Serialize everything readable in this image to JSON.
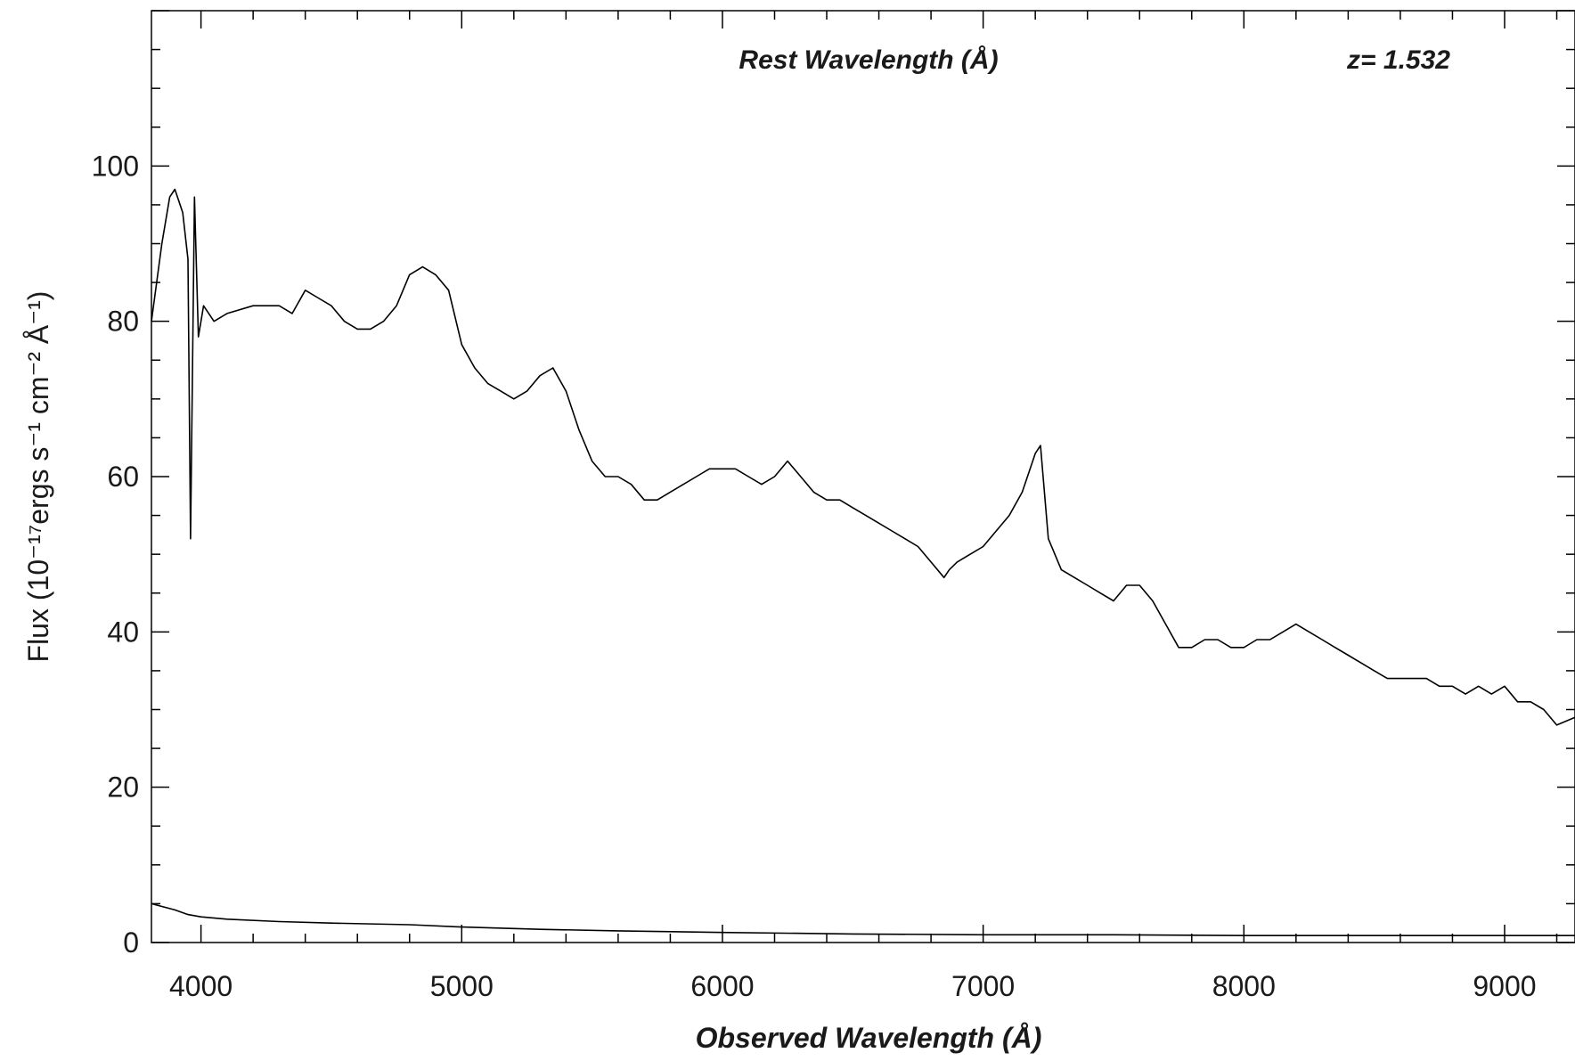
{
  "chart_data": {
    "type": "line",
    "title": "Rest Wavelength (Å)",
    "annotation": "z= 1.532",
    "xlabel": "Observed Wavelength (Å)",
    "ylabel": "Flux (10⁻¹⁷ergs s⁻¹ cm⁻² Å⁻¹)",
    "xlim": [
      3810,
      9270
    ],
    "ylim": [
      0,
      120
    ],
    "x_ticks": [
      4000,
      5000,
      6000,
      7000,
      8000,
      9000
    ],
    "x_tick_labels": [
      "4000",
      "5000",
      "6000",
      "7000",
      "8000",
      "9000"
    ],
    "y_ticks": [
      0,
      20,
      40,
      60,
      80,
      100
    ],
    "y_tick_labels": [
      "0",
      "20",
      "40",
      "60",
      "80",
      "100"
    ],
    "grid": false,
    "series": [
      {
        "role": "flux",
        "x": [
          3810,
          3850,
          3880,
          3900,
          3930,
          3950,
          3960,
          3975,
          3990,
          4010,
          4050,
          4100,
          4200,
          4300,
          4350,
          4400,
          4450,
          4500,
          4550,
          4600,
          4650,
          4700,
          4750,
          4800,
          4850,
          4900,
          4950,
          5000,
          5050,
          5100,
          5150,
          5200,
          5250,
          5300,
          5350,
          5400,
          5450,
          5500,
          5550,
          5600,
          5650,
          5700,
          5750,
          5800,
          5850,
          5900,
          5950,
          6000,
          6050,
          6100,
          6150,
          6200,
          6250,
          6300,
          6350,
          6400,
          6450,
          6500,
          6550,
          6600,
          6650,
          6700,
          6750,
          6800,
          6850,
          6870,
          6900,
          6950,
          7000,
          7050,
          7100,
          7150,
          7200,
          7220,
          7250,
          7300,
          7350,
          7400,
          7450,
          7500,
          7550,
          7600,
          7650,
          7700,
          7750,
          7800,
          7850,
          7900,
          7950,
          8000,
          8050,
          8100,
          8150,
          8200,
          8250,
          8300,
          8350,
          8400,
          8450,
          8500,
          8550,
          8600,
          8650,
          8700,
          8750,
          8800,
          8850,
          8900,
          8950,
          9000,
          9050,
          9100,
          9150,
          9200,
          9270
        ],
        "y": [
          80,
          90,
          96,
          97,
          94,
          88,
          52,
          96,
          78,
          82,
          80,
          81,
          82,
          82,
          81,
          84,
          83,
          82,
          80,
          79,
          79,
          80,
          82,
          86,
          87,
          86,
          84,
          77,
          74,
          72,
          71,
          70,
          71,
          73,
          74,
          71,
          66,
          62,
          60,
          60,
          59,
          57,
          57,
          58,
          59,
          60,
          61,
          61,
          61,
          60,
          59,
          60,
          62,
          60,
          58,
          57,
          57,
          56,
          55,
          54,
          53,
          52,
          51,
          49,
          47,
          48,
          49,
          50,
          51,
          53,
          55,
          58,
          63,
          64,
          52,
          48,
          47,
          46,
          45,
          44,
          46,
          46,
          44,
          41,
          38,
          38,
          39,
          39,
          38,
          38,
          39,
          39,
          40,
          41,
          40,
          39,
          38,
          37,
          36,
          35,
          34,
          34,
          34,
          34,
          33,
          33,
          32,
          33,
          32,
          33,
          31,
          31,
          30,
          28,
          29
        ]
      },
      {
        "role": "error",
        "x": [
          3810,
          3900,
          3950,
          4000,
          4100,
          4300,
          4500,
          4800,
          5000,
          5300,
          5600,
          6000,
          6500,
          7000,
          7500,
          8000,
          8500,
          9000,
          9270
        ],
        "y": [
          5,
          4.2,
          3.6,
          3.3,
          3,
          2.7,
          2.5,
          2.3,
          2,
          1.7,
          1.5,
          1.3,
          1.1,
          1,
          1,
          0.9,
          0.9,
          0.9,
          0.9
        ]
      }
    ]
  }
}
